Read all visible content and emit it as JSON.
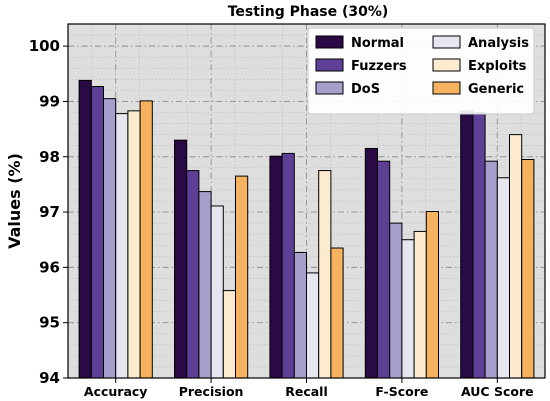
{
  "chart_data": {
    "type": "bar",
    "title": "Testing Phase (30%)",
    "xlabel": "",
    "ylabel": "Values (%)",
    "ylim": [
      94,
      100.4
    ],
    "yticks": [
      "94",
      "95",
      "96",
      "97",
      "98",
      "99",
      "100"
    ],
    "grid": true,
    "legend_position": "top-right",
    "categories": [
      "Accuracy",
      "Precision",
      "Recall",
      "F-Score",
      "AUC Score"
    ],
    "series": [
      {
        "name": "Normal",
        "color": "#2a0a45",
        "values": [
          99.38,
          98.3,
          98.01,
          98.15,
          98.83
        ]
      },
      {
        "name": "Fuzzers",
        "color": "#5e3f96",
        "values": [
          99.27,
          97.75,
          98.06,
          97.92,
          98.8
        ]
      },
      {
        "name": "DoS",
        "color": "#a59fcc",
        "values": [
          99.05,
          97.37,
          96.27,
          96.8,
          97.92
        ]
      },
      {
        "name": "Analysis",
        "color": "#e6e6f0",
        "values": [
          98.78,
          97.11,
          95.9,
          96.5,
          97.62
        ]
      },
      {
        "name": "Exploits",
        "color": "#fdebd0",
        "values": [
          98.83,
          95.58,
          97.75,
          96.65,
          98.4
        ]
      },
      {
        "name": "Generic",
        "color": "#f6b25e",
        "values": [
          99.01,
          97.65,
          96.35,
          97.01,
          97.95
        ]
      }
    ]
  }
}
